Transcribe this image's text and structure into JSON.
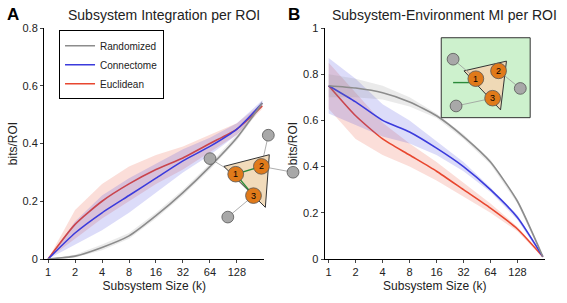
{
  "chart_data": [
    {
      "type": "line",
      "title": "Subsystem Integration per ROI",
      "annotations": [
        "A",
        "1",
        "2",
        "3"
      ],
      "x_label": "Subsystem Size (k)",
      "y_label": "bits/ROI",
      "log": "x",
      "grid": false,
      "legend": "upper left",
      "x": [
        1,
        2,
        4,
        8,
        16,
        32,
        64,
        128,
        246
      ],
      "xlim": [
        0.9,
        260
      ],
      "xticks": [
        1,
        2,
        4,
        8,
        16,
        32,
        64,
        128
      ],
      "ylim": [
        0,
        0.8
      ],
      "yticks": [
        0,
        0.2,
        0.4,
        0.6,
        0.8
      ],
      "series": [
        {
          "name": "Euclidean",
          "color": "#e8472f",
          "values": [
            0,
            0.12,
            0.2,
            0.26,
            0.31,
            0.35,
            0.4,
            0.45,
            0.53
          ],
          "lower": [
            0,
            0.07,
            0.14,
            0.2,
            0.26,
            0.31,
            0.37,
            0.43,
            0.52
          ],
          "upper": [
            0,
            0.17,
            0.26,
            0.32,
            0.36,
            0.39,
            0.43,
            0.47,
            0.54
          ]
        },
        {
          "name": "Connectome",
          "color": "#3b3bdc",
          "values": [
            0,
            0.09,
            0.16,
            0.22,
            0.28,
            0.34,
            0.39,
            0.45,
            0.54
          ],
          "lower": [
            0,
            0.05,
            0.1,
            0.16,
            0.23,
            0.3,
            0.36,
            0.43,
            0.53
          ],
          "upper": [
            0,
            0.13,
            0.22,
            0.28,
            0.33,
            0.38,
            0.42,
            0.47,
            0.55
          ]
        },
        {
          "name": "Randomized",
          "color": "#8c8c8c",
          "values": [
            0,
            0.01,
            0.04,
            0.08,
            0.15,
            0.23,
            0.32,
            0.42,
            0.54
          ],
          "lower": [
            0,
            0.005,
            0.03,
            0.07,
            0.14,
            0.22,
            0.31,
            0.41,
            0.53
          ],
          "upper": [
            0,
            0.015,
            0.05,
            0.09,
            0.16,
            0.24,
            0.33,
            0.43,
            0.55
          ]
        }
      ]
    },
    {
      "type": "line",
      "title": "Subsystem-Environment MI per ROI",
      "annotations": [
        "B",
        "1",
        "2",
        "3"
      ],
      "x_label": "Subsystem Size (k)",
      "y_label": "bits/ROI",
      "log": "x",
      "grid": false,
      "x": [
        1,
        2,
        4,
        8,
        16,
        32,
        64,
        128,
        246
      ],
      "xlim": [
        0.9,
        260
      ],
      "xticks": [
        1,
        2,
        4,
        8,
        16,
        32,
        64,
        128
      ],
      "ylim": [
        0,
        1
      ],
      "yticks": [
        0,
        0.2,
        0.4,
        0.6,
        0.8,
        1
      ],
      "series": [
        {
          "name": "Euclidean",
          "color": "#e8472f",
          "values": [
            0.75,
            0.62,
            0.52,
            0.45,
            0.38,
            0.3,
            0.22,
            0.13,
            0.01
          ],
          "lower": [
            0.65,
            0.52,
            0.45,
            0.4,
            0.34,
            0.27,
            0.2,
            0.12,
            0.005
          ],
          "upper": [
            0.85,
            0.72,
            0.59,
            0.5,
            0.42,
            0.33,
            0.24,
            0.14,
            0.015
          ]
        },
        {
          "name": "Connectome",
          "color": "#3b3bdc",
          "values": [
            0.75,
            0.68,
            0.6,
            0.55,
            0.48,
            0.4,
            0.3,
            0.18,
            0.01
          ],
          "lower": [
            0.63,
            0.58,
            0.53,
            0.5,
            0.45,
            0.38,
            0.29,
            0.17,
            0.005
          ],
          "upper": [
            0.87,
            0.78,
            0.67,
            0.6,
            0.51,
            0.42,
            0.31,
            0.19,
            0.015
          ]
        },
        {
          "name": "Randomized",
          "color": "#8c8c8c",
          "values": [
            0.75,
            0.74,
            0.72,
            0.68,
            0.62,
            0.53,
            0.42,
            0.25,
            0.01
          ],
          "lower": [
            0.7,
            0.7,
            0.69,
            0.66,
            0.61,
            0.52,
            0.41,
            0.24,
            0.005
          ],
          "upper": [
            0.8,
            0.78,
            0.75,
            0.7,
            0.63,
            0.54,
            0.43,
            0.26,
            0.015
          ]
        }
      ]
    }
  ]
}
